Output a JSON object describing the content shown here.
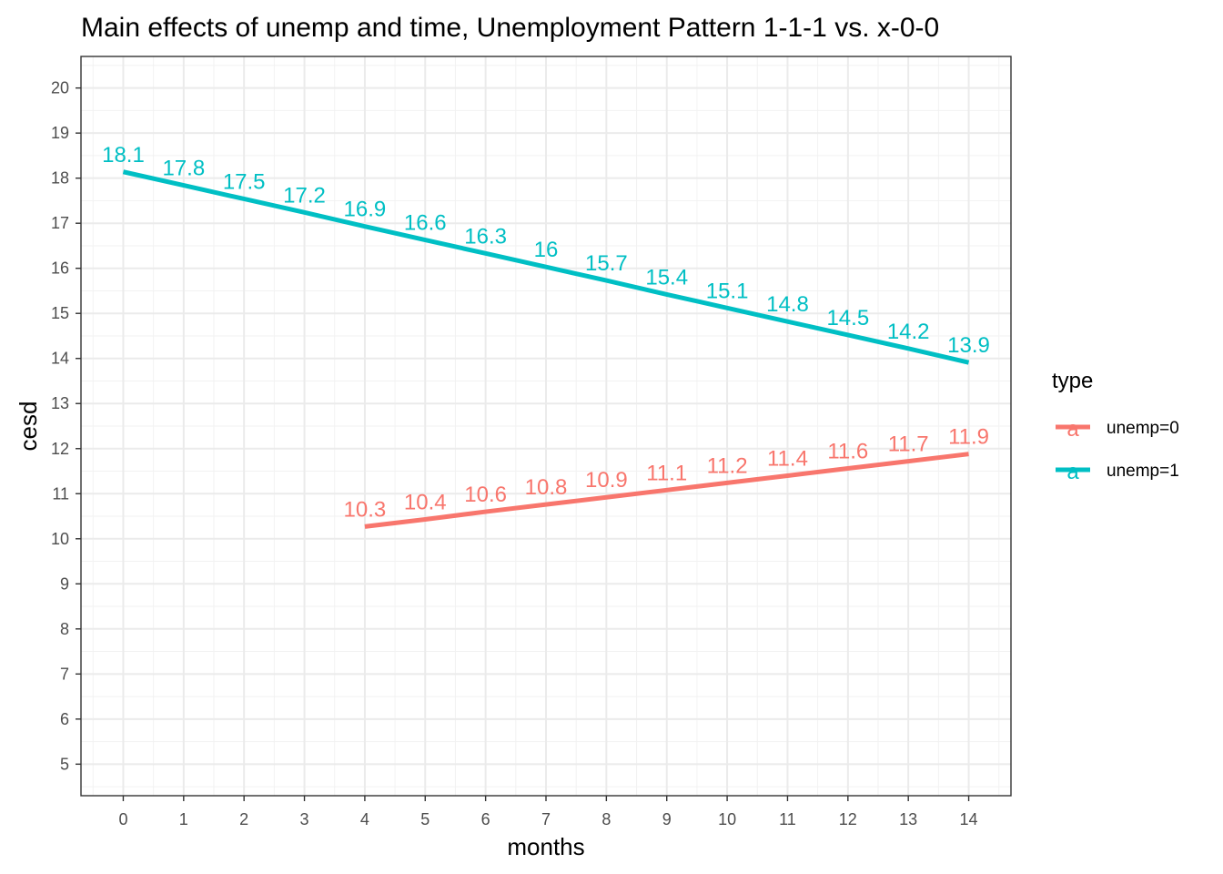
{
  "chart_data": {
    "type": "line",
    "title": "Main effects of unemp and time, Unemployment Pattern 1-1-1 vs. x-0-0",
    "xlabel": "months",
    "ylabel": "cesd",
    "xlim": [
      -0.7,
      14.7
    ],
    "ylim": [
      4.3,
      20.7
    ],
    "x_ticks": [
      0,
      1,
      2,
      3,
      4,
      5,
      6,
      7,
      8,
      9,
      10,
      11,
      12,
      13,
      14
    ],
    "y_ticks": [
      5,
      6,
      7,
      8,
      9,
      10,
      11,
      12,
      13,
      14,
      15,
      16,
      17,
      18,
      19,
      20
    ],
    "grid": true,
    "legend_position": "right",
    "legend_title": "type",
    "legend_key_glyph": "a",
    "series": [
      {
        "name": "unemp=0",
        "color": "#F8766D",
        "x": [
          4,
          5,
          6,
          7,
          8,
          9,
          10,
          11,
          12,
          13,
          14
        ],
        "values": [
          10.27,
          10.43,
          10.6,
          10.76,
          10.92,
          11.08,
          11.24,
          11.4,
          11.56,
          11.72,
          11.88
        ],
        "labels": [
          "10.3",
          "10.4",
          "10.6",
          "10.8",
          "10.9",
          "11.1",
          "11.2",
          "11.4",
          "11.6",
          "11.7",
          "11.9"
        ]
      },
      {
        "name": "unemp=1",
        "color": "#00BFC4",
        "x": [
          0,
          1,
          2,
          3,
          4,
          5,
          6,
          7,
          8,
          9,
          10,
          11,
          12,
          13,
          14
        ],
        "values": [
          18.14,
          17.84,
          17.54,
          17.24,
          16.93,
          16.63,
          16.33,
          16.03,
          15.73,
          15.42,
          15.12,
          14.82,
          14.52,
          14.22,
          13.91
        ],
        "labels": [
          "18.1",
          "17.8",
          "17.5",
          "17.2",
          "16.9",
          "16.6",
          "16.3",
          "16",
          "15.7",
          "15.4",
          "15.1",
          "14.8",
          "14.5",
          "14.2",
          "13.9"
        ]
      }
    ]
  }
}
